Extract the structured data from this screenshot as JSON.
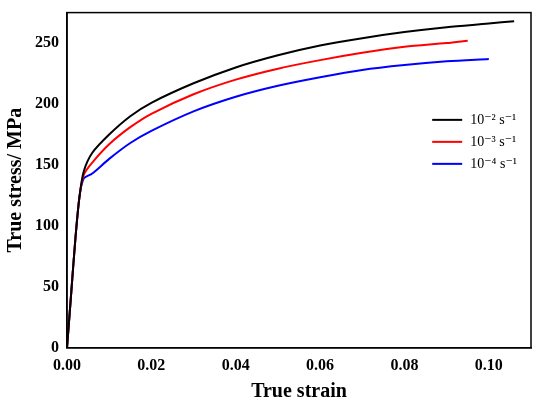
{
  "chart_data": {
    "type": "line",
    "x_label": "True strain",
    "y_label": "True stress/ MPa",
    "xlim": [
      0,
      0.11
    ],
    "ylim": [
      0,
      275
    ],
    "xticks": [
      {
        "value": 0,
        "label": "0.00"
      },
      {
        "value": 0.02,
        "label": "0.02"
      },
      {
        "value": 0.04,
        "label": "0.04"
      },
      {
        "value": 0.06,
        "label": "0.06"
      },
      {
        "value": 0.08,
        "label": "0.08"
      },
      {
        "value": 0.1,
        "label": "0.10"
      }
    ],
    "yticks": [
      0,
      50,
      100,
      150,
      200,
      250
    ],
    "grid": false,
    "legend": "center right",
    "series": [
      {
        "name": "10⁻² s⁻¹",
        "color": "#000000",
        "line_style": "solid",
        "x": [
          0,
          0.001,
          0.002,
          0.003,
          0.004,
          0.006,
          0.01,
          0.015,
          0.02,
          0.03,
          0.04,
          0.05,
          0.06,
          0.07,
          0.08,
          0.09,
          0.1,
          0.106
        ],
        "values": [
          0,
          45,
          90,
          125,
          145,
          160,
          175,
          190,
          201,
          217,
          230,
          240,
          248,
          254,
          259,
          263,
          266,
          268
        ]
      },
      {
        "name": "10⁻³ s⁻¹",
        "color": "#ff0000",
        "line_style": "solid",
        "x": [
          0,
          0.001,
          0.002,
          0.003,
          0.004,
          0.006,
          0.01,
          0.015,
          0.02,
          0.03,
          0.04,
          0.05,
          0.06,
          0.07,
          0.08,
          0.09,
          0.095
        ],
        "values": [
          0,
          45,
          90,
          125,
          142,
          152,
          167,
          181,
          192,
          208,
          220,
          229,
          236,
          242,
          247,
          250,
          252
        ]
      },
      {
        "name": "10⁻⁴ s⁻¹",
        "color": "#0000ff",
        "line_style": "solid",
        "x": [
          0,
          0.001,
          0.002,
          0.003,
          0.004,
          0.006,
          0.01,
          0.015,
          0.02,
          0.03,
          0.04,
          0.05,
          0.06,
          0.07,
          0.08,
          0.09,
          0.1
        ],
        "values": [
          0,
          45,
          90,
          125,
          139,
          143,
          155,
          168,
          178,
          194,
          206,
          215,
          222,
          228,
          232,
          235,
          237
        ]
      }
    ]
  }
}
